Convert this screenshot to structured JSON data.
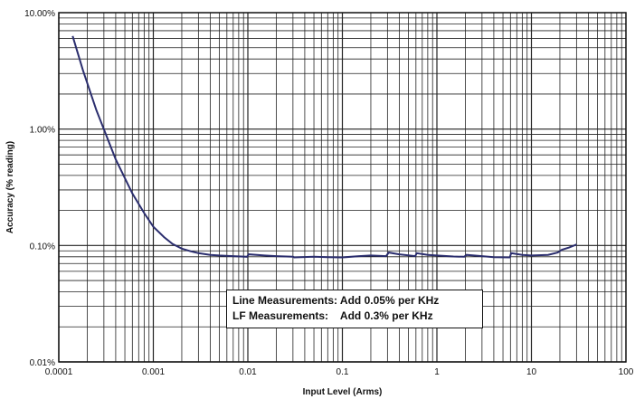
{
  "chart_data": {
    "type": "line",
    "title": "",
    "xlabel": "Input Level (Arms)",
    "ylabel": "Accuracy (% reading)",
    "xscale": "log",
    "yscale": "log",
    "xlim": [
      0.0001,
      100
    ],
    "ylim": [
      0.01,
      10
    ],
    "x_ticks": [
      "0.0001",
      "0.001",
      "0.01",
      "0.1",
      "1",
      "10",
      "100"
    ],
    "y_ticks": [
      "0.01%",
      "0.10%",
      "1.00%",
      "10.00%"
    ],
    "grid": true,
    "legend": "none",
    "line_color": "#2b2e6e",
    "series": [
      {
        "x": [
          0.00014,
          0.00018,
          0.00025,
          0.0004,
          0.0006,
          0.0008,
          0.001,
          0.0013,
          0.0016,
          0.002,
          0.0025,
          0.003,
          0.004,
          0.005,
          0.007,
          0.0098,
          0.0102,
          0.015,
          0.02,
          0.03,
          0.031,
          0.05,
          0.07,
          0.1,
          0.15,
          0.2,
          0.29,
          0.31,
          0.4,
          0.59,
          0.61,
          0.8,
          1.0,
          1.5,
          1.95,
          2.05,
          3,
          4,
          5.9,
          6.1,
          8,
          10,
          15,
          19,
          21,
          25,
          30
        ],
        "y": [
          6.3,
          3.2,
          1.45,
          0.55,
          0.28,
          0.19,
          0.145,
          0.118,
          0.103,
          0.094,
          0.089,
          0.086,
          0.083,
          0.082,
          0.081,
          0.08,
          0.084,
          0.082,
          0.081,
          0.08,
          0.079,
          0.08,
          0.0795,
          0.079,
          0.081,
          0.082,
          0.081,
          0.087,
          0.084,
          0.081,
          0.086,
          0.083,
          0.082,
          0.0805,
          0.08,
          0.083,
          0.081,
          0.0795,
          0.079,
          0.086,
          0.083,
          0.082,
          0.083,
          0.087,
          0.092,
          0.096,
          0.102
        ]
      }
    ],
    "annotation": {
      "line1": "Line Measurements: Add 0.05% per KHz",
      "line2": "LF Measurements:    Add 0.3% per KHz"
    }
  }
}
